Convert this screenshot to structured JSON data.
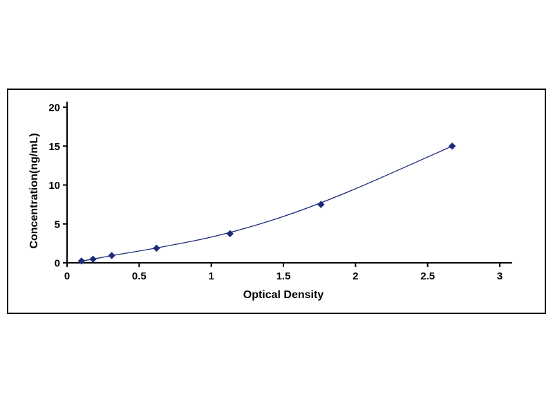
{
  "chart": {
    "title": "",
    "xlabel": "Optical Density",
    "ylabel": "Concentration(ng/mL)"
  },
  "chart_data": {
    "type": "line",
    "title": "",
    "xlabel": "Optical Density",
    "ylabel": "Concentration(ng/mL)",
    "x": [
      0.1,
      0.18,
      0.31,
      0.62,
      1.13,
      1.76,
      2.67
    ],
    "y": [
      0.23,
      0.47,
      0.94,
      1.88,
      3.75,
      7.5,
      15
    ],
    "xlim": [
      0,
      3
    ],
    "ylim": [
      0,
      20
    ],
    "x_ticks": [
      0,
      0.5,
      1,
      1.5,
      2,
      2.5,
      3
    ],
    "y_ticks": [
      0,
      5,
      10,
      15,
      20
    ],
    "marker": "diamond",
    "line_color": "#1c2a7a",
    "marker_color": "#1c2a7a",
    "axis_color": "#000000",
    "grid": false,
    "legend_position": "none"
  }
}
